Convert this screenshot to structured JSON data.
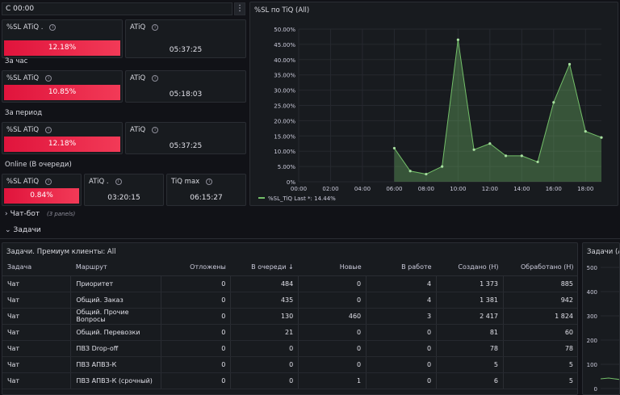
{
  "header": {
    "time_filter": "С 00:00",
    "menu_icon": "vertical-dots-icon"
  },
  "sections": {
    "hour": "За час",
    "period": "За период",
    "online": "Online (В очереди)"
  },
  "stats": {
    "top": {
      "sl_label": "%SL ATiQ .",
      "sl_value": "12.18%",
      "atiq_label": "ATiQ",
      "atiq_value": "05:37:25"
    },
    "hour": {
      "sl_label": "%SL ATiQ",
      "sl_value": "10.85%",
      "atiq_label": "ATiQ",
      "atiq_value": "05:18:03"
    },
    "period": {
      "sl_label": "%SL ATiQ",
      "sl_value": "12.18%",
      "atiq_label": "ATiQ",
      "atiq_value": "05:37:25"
    },
    "online": {
      "sl_label": "%SL ATiQ",
      "sl_value": "0.84%",
      "atiq_label": "ATiQ .",
      "atiq_value": "03:20:15",
      "tiq_label": "TiQ max",
      "tiq_value": "06:15:27"
    }
  },
  "chart_data": {
    "type": "area",
    "title": "%SL по TiQ (All)",
    "x": [
      "06:00",
      "07:00",
      "08:00",
      "09:00",
      "10:00",
      "11:00",
      "12:00",
      "13:00",
      "14:00",
      "15:00",
      "16:00",
      "17:00",
      "18:00",
      "19:00"
    ],
    "series": [
      {
        "name": "%SL_TiQ",
        "values": [
          11,
          3.5,
          2.5,
          5,
          46.5,
          10.5,
          12.5,
          8.5,
          8.5,
          6.5,
          26,
          38.5,
          16.5,
          14.5
        ]
      }
    ],
    "x_ticks": [
      "00:00",
      "02:00",
      "04:00",
      "06:00",
      "08:00",
      "10:00",
      "12:00",
      "14:00",
      "16:00",
      "18:00"
    ],
    "y_ticks": [
      "0%",
      "5.00%",
      "10.00%",
      "15.00%",
      "20.00%",
      "25.00%",
      "30.00%",
      "35.00%",
      "40.00%",
      "45.00%",
      "50.00%"
    ],
    "ylim": [
      0,
      50
    ],
    "legend_text": "%SL_TiQ   Last *: 14.44%",
    "color": "#73bf69"
  },
  "rows_collapsed": {
    "chatbot": "Чат-бот",
    "chatbot_count": "(3 panels)",
    "tasks": "Задачи"
  },
  "table": {
    "title": "Задачи. Премиум клиенты: All",
    "columns": [
      "Задача",
      "Маршрут",
      "Отложены",
      "В очереди",
      "Новые",
      "В работе",
      "Создано (Н)",
      "Обработано (Н)"
    ],
    "sort_indicator": "↓",
    "rows": [
      [
        "Чат",
        "Приоритет",
        "0",
        "484",
        "0",
        "4",
        "1 373",
        "885"
      ],
      [
        "Чат",
        "Общий. Заказ",
        "0",
        "435",
        "0",
        "4",
        "1 381",
        "942"
      ],
      [
        "Чат",
        "Общий. Прочие Вопросы",
        "0",
        "130",
        "460",
        "3",
        "2 417",
        "1 824"
      ],
      [
        "Чат",
        "Общий. Перевозки",
        "0",
        "21",
        "0",
        "0",
        "81",
        "60"
      ],
      [
        "Чат",
        "ПВЗ Drop-off",
        "0",
        "0",
        "0",
        "0",
        "78",
        "78"
      ],
      [
        "Чат",
        "ПВЗ АПВЗ-К",
        "0",
        "0",
        "0",
        "0",
        "5",
        "5"
      ],
      [
        "Чат",
        "ПВЗ АПВЗ-К (срочный)",
        "0",
        "0",
        "1",
        "0",
        "6",
        "5"
      ]
    ]
  },
  "side_panel": {
    "title": "Задачи (All",
    "y_ticks": [
      "500",
      "400",
      "300",
      "200",
      "100",
      "0"
    ]
  }
}
